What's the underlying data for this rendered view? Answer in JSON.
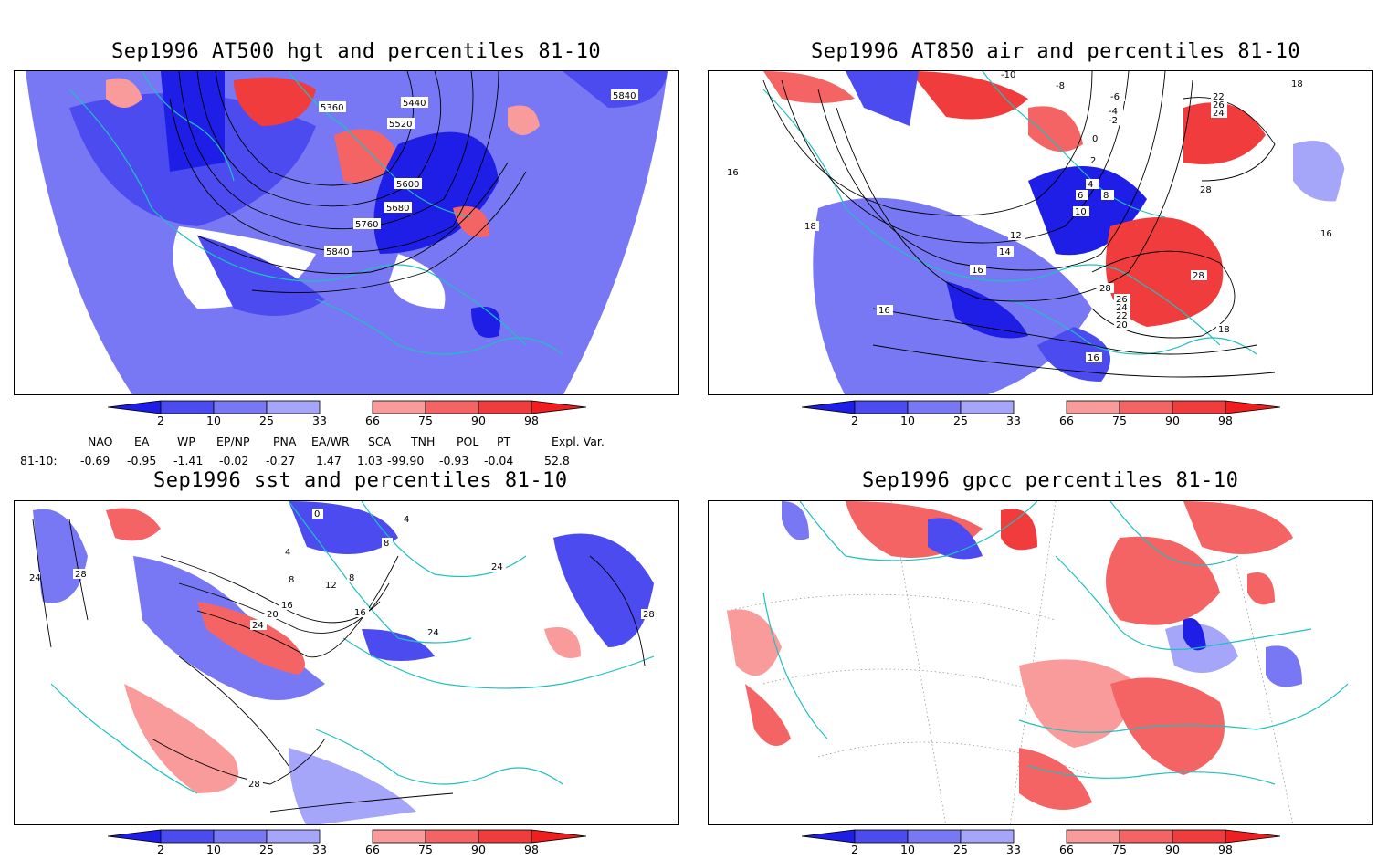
{
  "panels": [
    {
      "id": "hgt",
      "title": "Sep1996 AT500 hgt and percentiles 81-10",
      "contour_labels": [
        "5360",
        "5440",
        "5520",
        "5600",
        "5680",
        "5760",
        "5840",
        "5840"
      ]
    },
    {
      "id": "air",
      "title": "Sep1996 AT850 air and percentiles 81-10",
      "contour_labels": [
        "-10",
        "-8",
        "-6",
        "-4",
        "-2",
        "0",
        "2",
        "4",
        "6",
        "8",
        "10",
        "12",
        "14",
        "16",
        "16",
        "18",
        "18",
        "18",
        "16",
        "16",
        "20",
        "22",
        "24",
        "26",
        "28",
        "28",
        "28",
        "24",
        "22",
        "26",
        "16"
      ]
    },
    {
      "id": "sst",
      "title": "Sep1996 sst and percentiles 81-10",
      "contour_labels": [
        "24",
        "28",
        "4",
        "8",
        "8",
        "12",
        "16",
        "16",
        "20",
        "24",
        "24",
        "24",
        "28",
        "28",
        "0",
        "4",
        "8"
      ]
    },
    {
      "id": "gpcc",
      "title": "Sep1996 gpcc percentiles 81-10",
      "contour_labels": []
    }
  ],
  "colorbar": {
    "labels": [
      "2",
      "10",
      "25",
      "33",
      "66",
      "75",
      "90",
      "98"
    ],
    "colors": {
      "dark_blue": "#1e1ee6",
      "blue": "#4b4bf0",
      "mid_blue": "#7878f5",
      "light_blue": "#a5a5fa",
      "light_red": "#fa9b9b",
      "red": "#f56464",
      "mid_red": "#f03c3c",
      "dark_red": "#f01e1e"
    }
  },
  "teleconnections": {
    "row_label": "81-10:",
    "headers": [
      "NAO",
      "EA",
      "WP",
      "EP/NP",
      "PNA",
      "EA/WR",
      "SCA",
      "TNH",
      "POL",
      "PT",
      "Expl. Var."
    ],
    "values": [
      "-0.69",
      "-0.95",
      "-1.41",
      "-0.02",
      "-0.27",
      "1.47",
      "1.03",
      "-99.90",
      "-0.93",
      "-0.04",
      "52.8"
    ]
  },
  "map_colors": {
    "coast": "#20c0c0",
    "contour": "#000000",
    "grid": "#888888"
  }
}
